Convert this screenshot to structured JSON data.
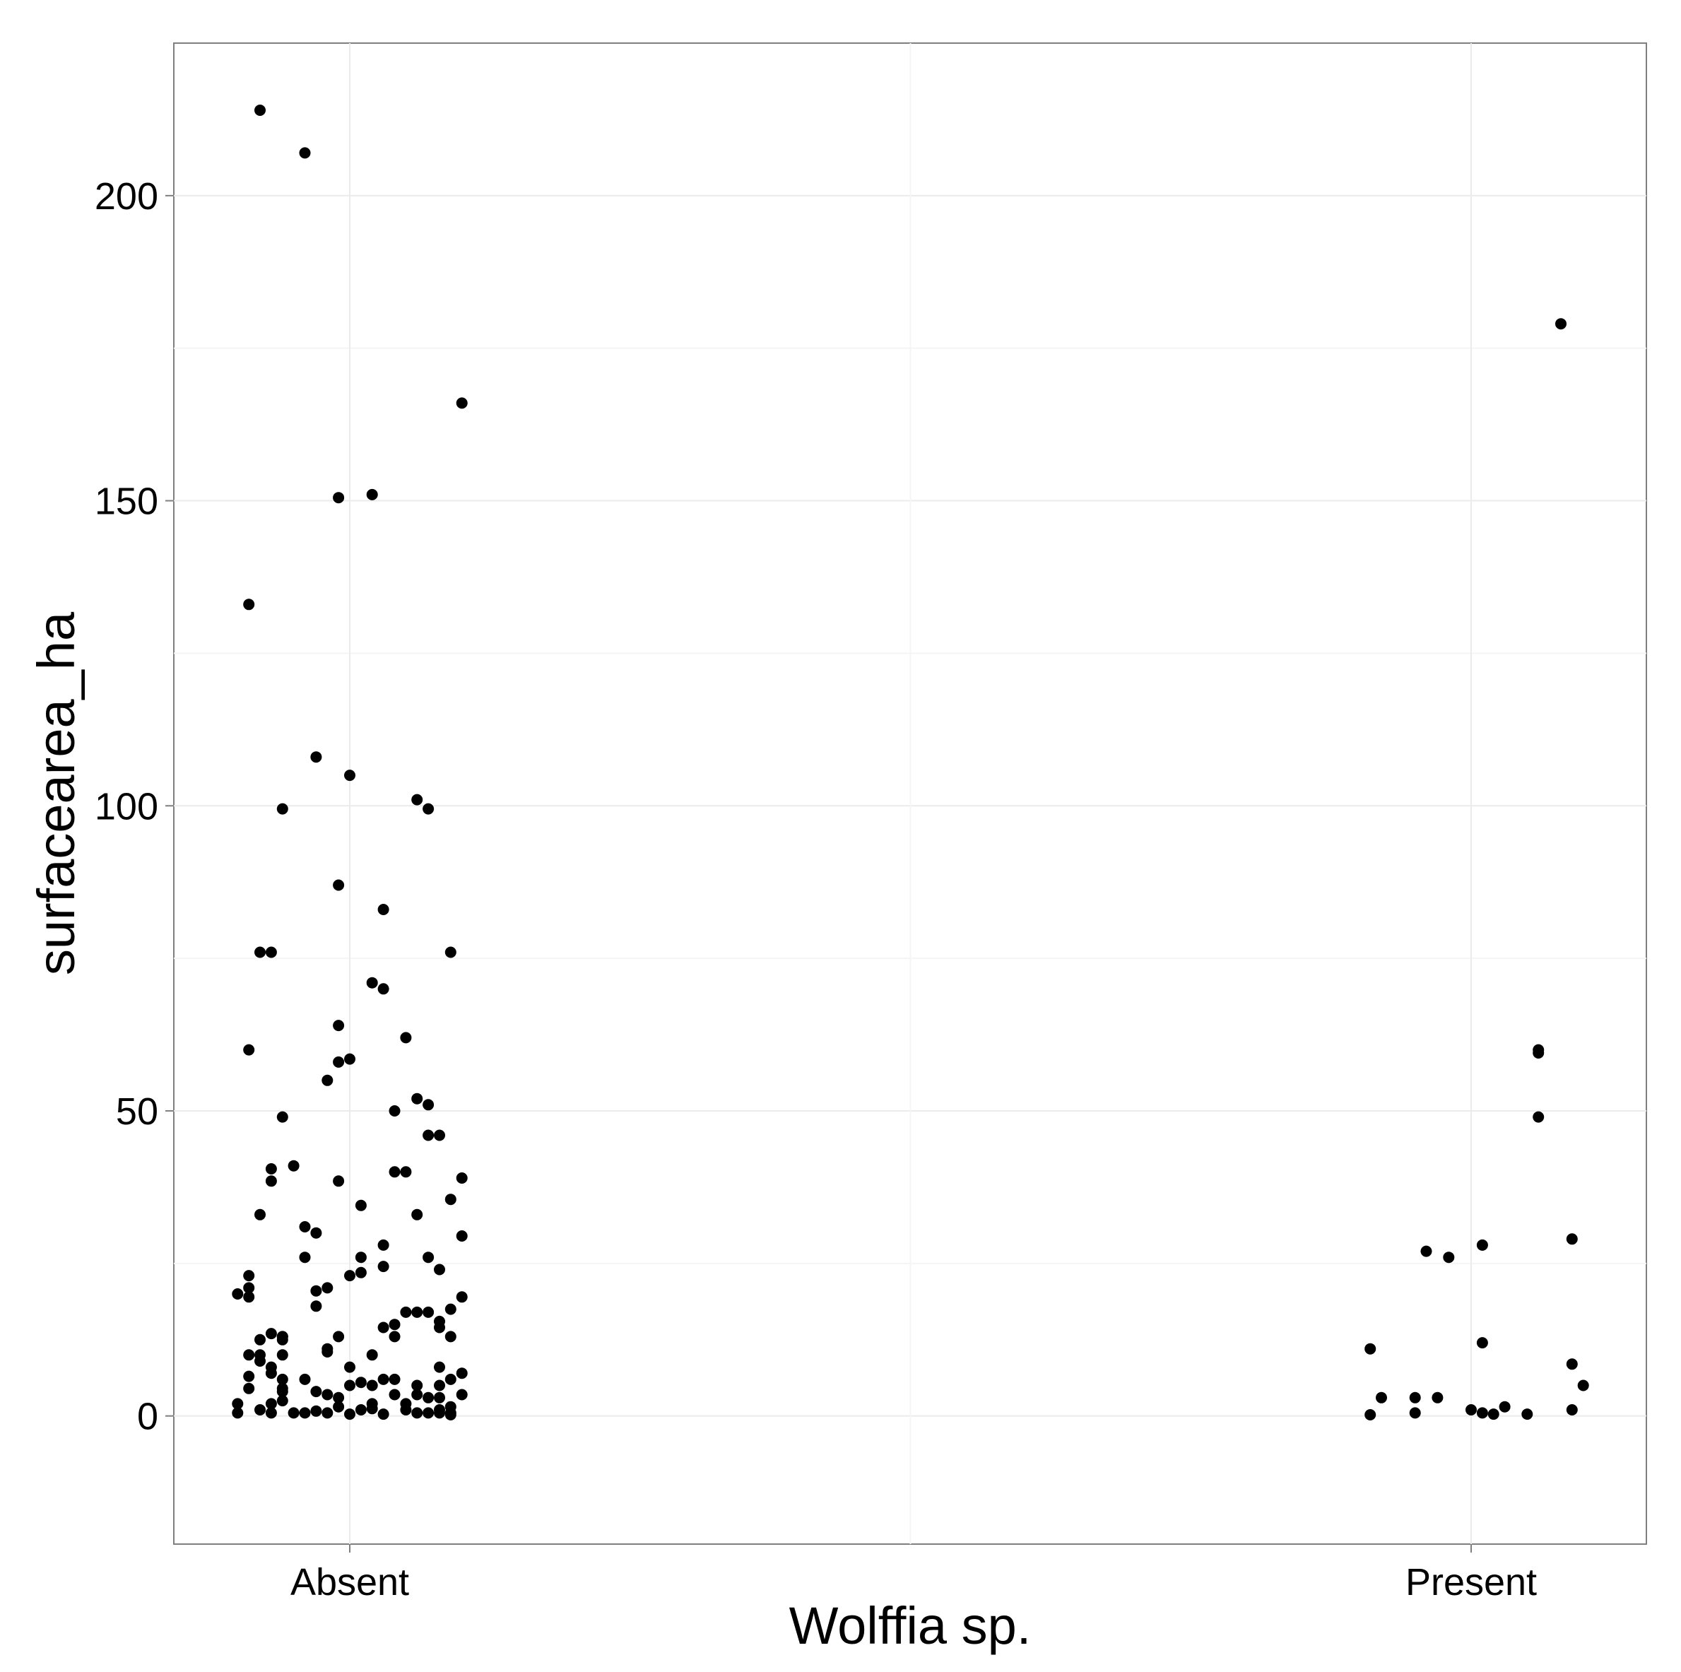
{
  "chart_data": {
    "type": "scatter",
    "xlabel": "Wolffia sp.",
    "ylabel": "surfacearea_ha",
    "categories": [
      "Absent",
      "Present"
    ],
    "ylim": [
      -21,
      225
    ],
    "yticks": [
      0,
      50,
      100,
      150,
      200
    ],
    "grid": true,
    "legend": "none",
    "point_color": "#000000",
    "series": [
      {
        "category": "Absent",
        "points": [
          [
            -0.08,
            214
          ],
          [
            -0.04,
            207
          ],
          [
            0.1,
            166
          ],
          [
            0.02,
            151
          ],
          [
            -0.01,
            150.5
          ],
          [
            -0.09,
            133
          ],
          [
            -0.03,
            108
          ],
          [
            0.0,
            105
          ],
          [
            0.06,
            101
          ],
          [
            0.07,
            99.5
          ],
          [
            -0.06,
            99.5
          ],
          [
            -0.01,
            87
          ],
          [
            0.03,
            83
          ],
          [
            -0.08,
            76
          ],
          [
            -0.07,
            76
          ],
          [
            0.09,
            76
          ],
          [
            0.02,
            71
          ],
          [
            0.03,
            70
          ],
          [
            -0.01,
            64
          ],
          [
            0.05,
            62
          ],
          [
            -0.09,
            60
          ],
          [
            0.0,
            58.5
          ],
          [
            -0.01,
            58
          ],
          [
            -0.02,
            55
          ],
          [
            0.06,
            52
          ],
          [
            0.07,
            51
          ],
          [
            -0.06,
            49
          ],
          [
            0.04,
            50
          ],
          [
            0.07,
            46
          ],
          [
            0.08,
            46
          ],
          [
            -0.05,
            41
          ],
          [
            -0.07,
            40.5
          ],
          [
            0.04,
            40
          ],
          [
            0.05,
            40
          ],
          [
            0.1,
            39
          ],
          [
            -0.07,
            38.5
          ],
          [
            -0.01,
            38.5
          ],
          [
            0.09,
            35.5
          ],
          [
            0.01,
            34.5
          ],
          [
            -0.08,
            33
          ],
          [
            0.06,
            33
          ],
          [
            -0.04,
            31
          ],
          [
            -0.03,
            30
          ],
          [
            0.1,
            29.5
          ],
          [
            0.03,
            28
          ],
          [
            -0.04,
            26
          ],
          [
            0.01,
            26
          ],
          [
            0.07,
            26
          ],
          [
            0.08,
            24
          ],
          [
            0.03,
            24.5
          ],
          [
            0.01,
            23.5
          ],
          [
            -0.09,
            23
          ],
          [
            0.0,
            23
          ],
          [
            -0.09,
            21
          ],
          [
            -0.1,
            20
          ],
          [
            -0.02,
            21
          ],
          [
            -0.03,
            20.5
          ],
          [
            0.1,
            19.5
          ],
          [
            -0.09,
            19.5
          ],
          [
            -0.03,
            18
          ],
          [
            0.09,
            17.5
          ],
          [
            0.06,
            17
          ],
          [
            0.07,
            17
          ],
          [
            0.05,
            17
          ],
          [
            0.08,
            15.5
          ],
          [
            0.04,
            15
          ],
          [
            0.08,
            14.5
          ],
          [
            0.03,
            14.5
          ],
          [
            -0.07,
            13.5
          ],
          [
            -0.06,
            13
          ],
          [
            -0.06,
            13
          ],
          [
            -0.01,
            13
          ],
          [
            0.04,
            13
          ],
          [
            0.09,
            13
          ],
          [
            -0.08,
            12.5
          ],
          [
            -0.06,
            12.5
          ],
          [
            -0.02,
            11
          ],
          [
            -0.02,
            10.5
          ],
          [
            -0.09,
            10
          ],
          [
            -0.08,
            10
          ],
          [
            0.02,
            10
          ],
          [
            -0.06,
            10
          ],
          [
            -0.08,
            9
          ],
          [
            -0.07,
            8
          ],
          [
            0.0,
            8
          ],
          [
            0.08,
            8
          ],
          [
            -0.07,
            7
          ],
          [
            -0.09,
            6.5
          ],
          [
            0.1,
            7
          ],
          [
            -0.04,
            6
          ],
          [
            -0.06,
            6
          ],
          [
            0.03,
            6
          ],
          [
            0.04,
            6
          ],
          [
            0.09,
            6
          ],
          [
            0.01,
            5.5
          ],
          [
            0.0,
            5
          ],
          [
            0.02,
            5
          ],
          [
            0.06,
            5
          ],
          [
            0.08,
            5
          ],
          [
            -0.06,
            4.5
          ],
          [
            -0.09,
            4.5
          ],
          [
            -0.06,
            4
          ],
          [
            -0.03,
            4
          ],
          [
            -0.02,
            3.5
          ],
          [
            0.04,
            3.5
          ],
          [
            0.1,
            3.5
          ],
          [
            0.06,
            3.5
          ],
          [
            0.08,
            3
          ],
          [
            -0.06,
            2.5
          ],
          [
            0.07,
            3
          ],
          [
            -0.01,
            3
          ],
          [
            -0.07,
            2
          ],
          [
            -0.1,
            2
          ],
          [
            0.02,
            2
          ],
          [
            0.05,
            2
          ],
          [
            -0.01,
            1.5
          ],
          [
            0.09,
            1.5
          ],
          [
            -0.08,
            1
          ],
          [
            0.01,
            1
          ],
          [
            0.05,
            1
          ],
          [
            -0.1,
            0.5
          ],
          [
            -0.07,
            0.5
          ],
          [
            -0.05,
            0.5
          ],
          [
            -0.04,
            0.5
          ],
          [
            -0.02,
            0.5
          ],
          [
            0.06,
            0.5
          ],
          [
            0.07,
            0.5
          ],
          [
            0.08,
            0.5
          ],
          [
            0.09,
            0.5
          ],
          [
            0.0,
            0.3
          ],
          [
            0.03,
            0.3
          ],
          [
            0.09,
            0.2
          ],
          [
            -0.03,
            0.8
          ],
          [
            0.08,
            1
          ],
          [
            0.02,
            1.2
          ]
        ]
      },
      {
        "category": "Present",
        "points": [
          [
            0.08,
            179
          ],
          [
            0.06,
            60
          ],
          [
            0.06,
            59.5
          ],
          [
            0.06,
            49
          ],
          [
            0.09,
            29
          ],
          [
            0.01,
            28
          ],
          [
            -0.04,
            27
          ],
          [
            -0.02,
            26
          ],
          [
            0.01,
            12
          ],
          [
            -0.09,
            11
          ],
          [
            0.09,
            8.5
          ],
          [
            0.1,
            5
          ],
          [
            -0.05,
            3
          ],
          [
            -0.08,
            3
          ],
          [
            -0.03,
            3
          ],
          [
            0.03,
            1.5
          ],
          [
            0.09,
            1
          ],
          [
            0.0,
            1
          ],
          [
            0.01,
            0.5
          ],
          [
            0.02,
            0.3
          ],
          [
            -0.09,
            0.2
          ],
          [
            -0.05,
            0.5
          ],
          [
            0.05,
            0.3
          ]
        ]
      }
    ]
  }
}
